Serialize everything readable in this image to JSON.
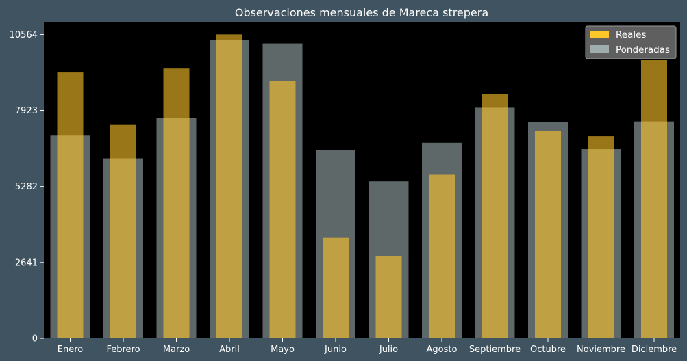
{
  "chart_data": {
    "type": "bar",
    "title": "Observaciones mensuales de Mareca strepera",
    "xlabel": "",
    "ylabel": "",
    "categories": [
      "Enero",
      "Febrero",
      "Marzo",
      "Abril",
      "Mayo",
      "Junio",
      "Julio",
      "Agosto",
      "Septiembre",
      "Octubre",
      "Noviembre",
      "Diciembre"
    ],
    "series": [
      {
        "name": "Reales",
        "values": [
          9240,
          7420,
          9380,
          10564,
          8950,
          3500,
          2860,
          5690,
          8500,
          7220,
          7030,
          9670
        ],
        "color": "#ffc629"
      },
      {
        "name": "Ponderadas",
        "values": [
          7050,
          6260,
          7650,
          10380,
          10250,
          6540,
          5460,
          6800,
          8020,
          7510,
          6580,
          7540
        ],
        "color": "#9fadad"
      }
    ],
    "ylim": [
      0,
      11000
    ],
    "yticks": [
      0,
      2641,
      5282,
      7923,
      10564
    ],
    "ytick_labels": [
      "0",
      "2641",
      "5282",
      "7923",
      "10564"
    ],
    "legend_position": "top-right",
    "grid": false
  }
}
